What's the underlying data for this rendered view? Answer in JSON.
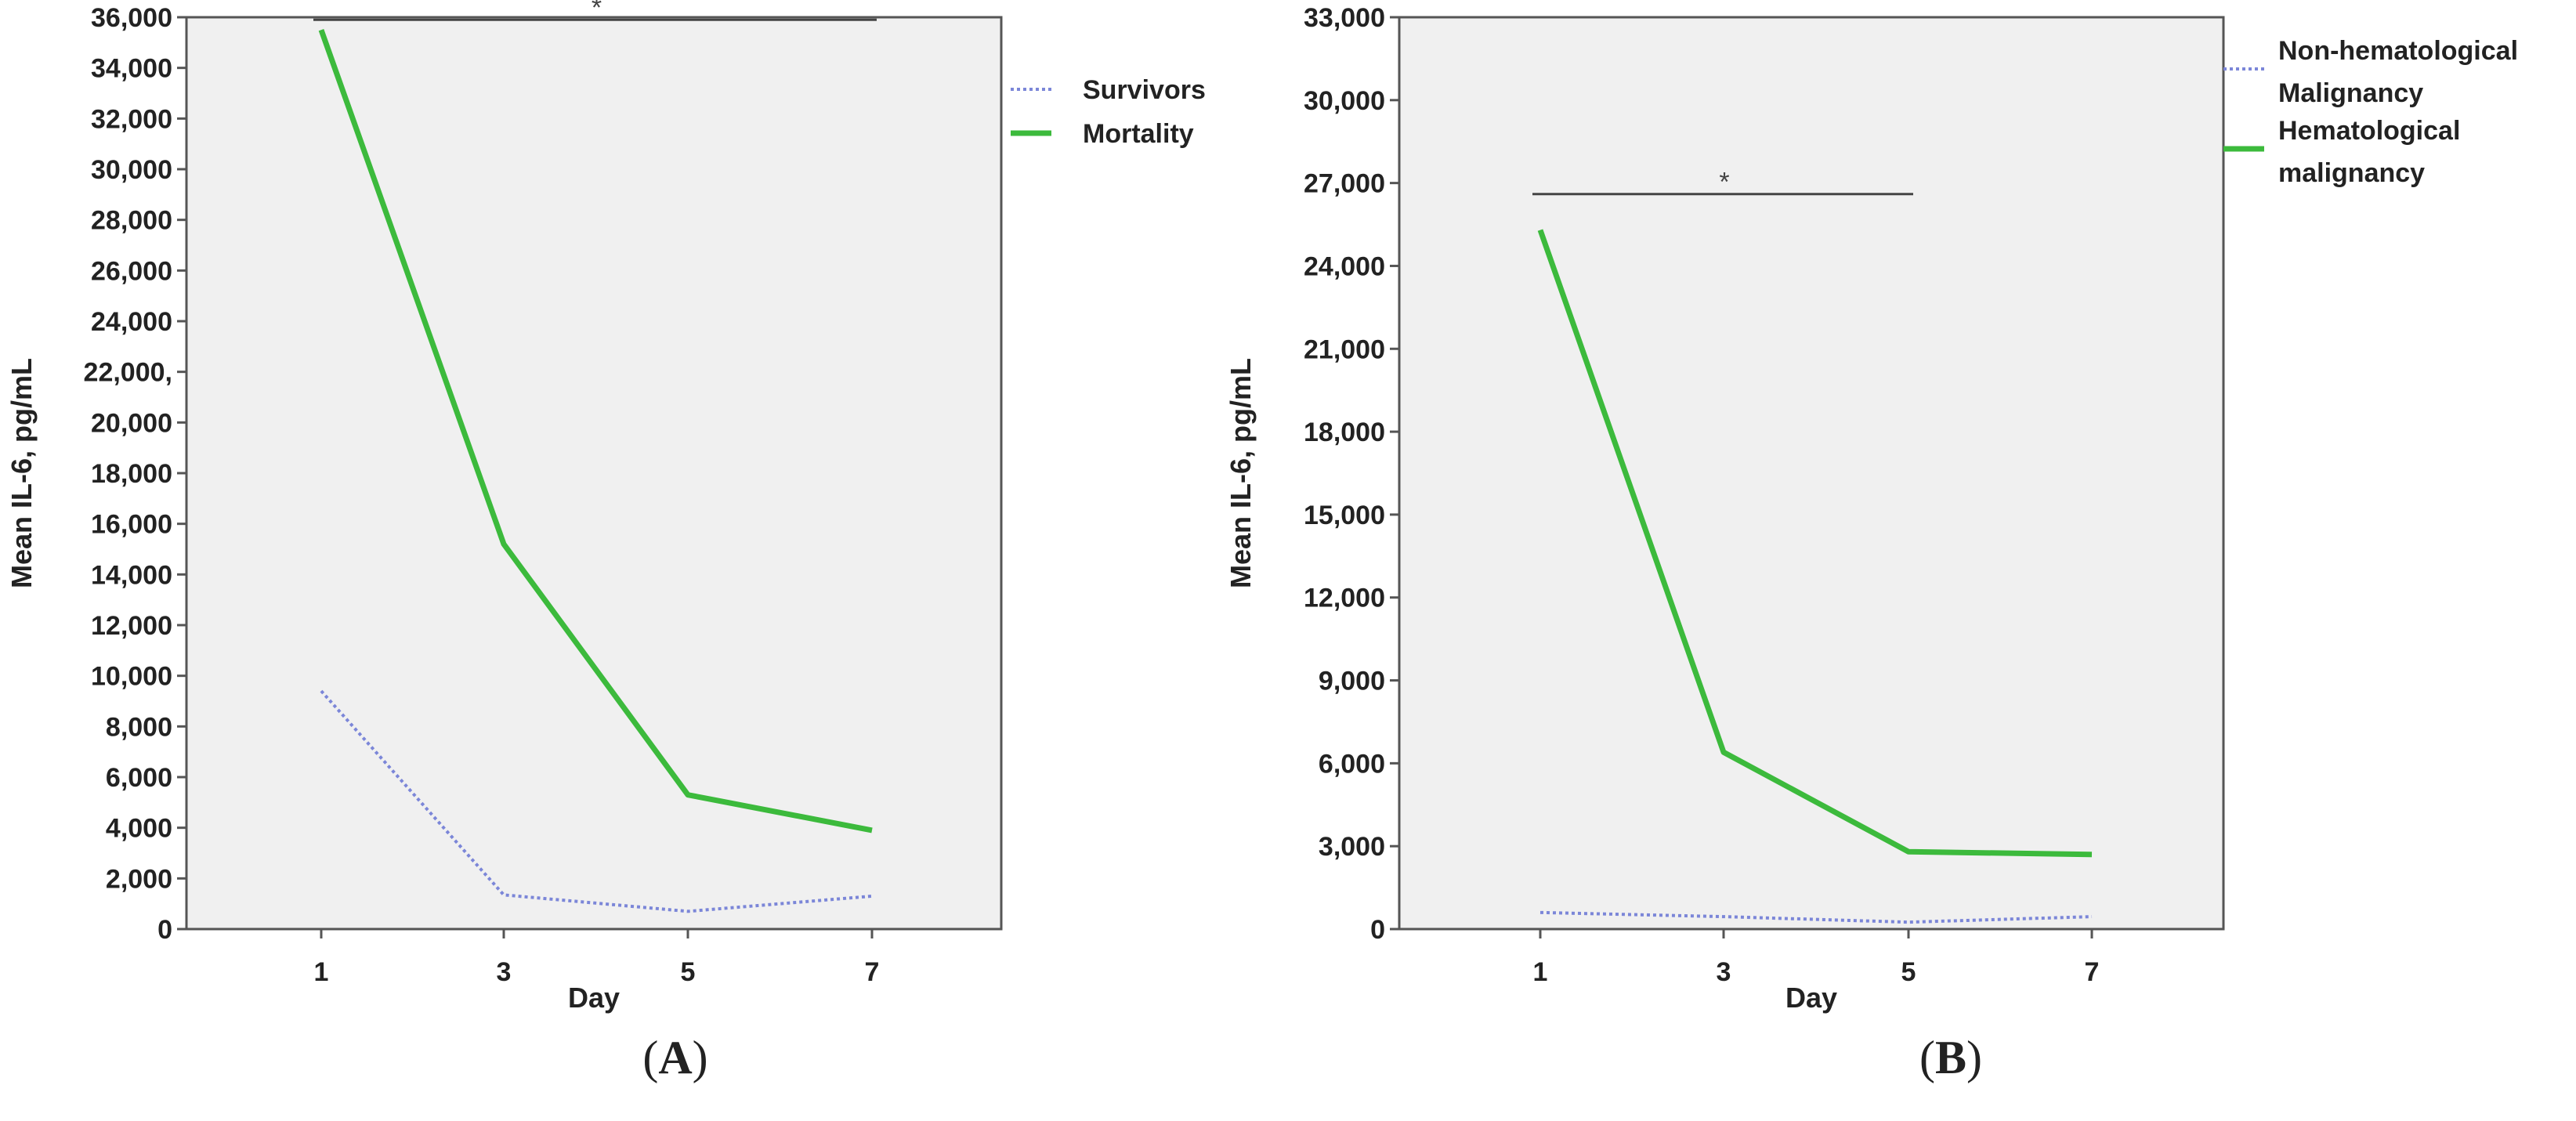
{
  "panels": [
    {
      "panel_label": "A",
      "legend": [
        "Survivors",
        "Mortality"
      ],
      "significance_marker": "*"
    },
    {
      "panel_label": "B",
      "legend": [
        "Non-hematological Malignancy",
        "Hematological malignancy"
      ],
      "significance_marker": "*"
    }
  ],
  "chart_data": [
    {
      "type": "line",
      "x": [
        1,
        3,
        5,
        7
      ],
      "xlabel": "Day",
      "ylabel": "Mean IL-6, pg/mL",
      "ylim": [
        0,
        36000
      ],
      "yticks": [
        0,
        2000,
        4000,
        6000,
        8000,
        10000,
        12000,
        14000,
        16000,
        18000,
        20000,
        22000,
        24000,
        26000,
        28000,
        30000,
        32000,
        34000,
        36000
      ],
      "yticklabels": [
        "0",
        "2,000",
        "4,000",
        "6,000",
        "8,000",
        "10,000",
        "12,000",
        "14,000",
        "16,000",
        "18,000",
        "20,000",
        "22,000,",
        "24,000",
        "26,000",
        "28,000",
        "30,000",
        "32,000",
        "34,000",
        "36,000"
      ],
      "xticklabels": [
        "1",
        "3",
        "5",
        "7"
      ],
      "legend_position": "right",
      "series": [
        {
          "name": "Survivors",
          "values": [
            9400,
            1350,
            700,
            1300
          ],
          "color": "#7b86d8",
          "style": "dotted"
        },
        {
          "name": "Mortality",
          "values": [
            35500,
            15200,
            5300,
            3900
          ],
          "color": "#3cba3c",
          "style": "solid"
        }
      ],
      "significance": {
        "from_x": 1,
        "to_x": 7,
        "y": 35900,
        "label": "*"
      }
    },
    {
      "type": "line",
      "x": [
        1,
        3,
        5,
        7
      ],
      "xlabel": "Day",
      "ylabel": "Mean IL-6, pg/mL",
      "ylim": [
        0,
        33000
      ],
      "yticks": [
        0,
        3000,
        6000,
        9000,
        12000,
        15000,
        18000,
        21000,
        24000,
        27000,
        30000,
        33000
      ],
      "yticklabels": [
        "0",
        "3,000",
        "6,000",
        "9,000",
        "12,000",
        "15,000",
        "18,000",
        "21,000",
        "24,000",
        "27,000",
        "30,000",
        "33,000"
      ],
      "xticklabels": [
        "1",
        "3",
        "5",
        "7"
      ],
      "legend_position": "right",
      "series": [
        {
          "name": "Non-hematological Malignancy",
          "values": [
            600,
            450,
            250,
            450
          ],
          "color": "#7b86d8",
          "style": "dotted"
        },
        {
          "name": "Hematological malignancy",
          "values": [
            25300,
            6400,
            2800,
            2700
          ],
          "color": "#3cba3c",
          "style": "solid"
        }
      ],
      "significance": {
        "from_x": 1,
        "to_x": 5,
        "y": 26600,
        "label": "*"
      }
    }
  ]
}
